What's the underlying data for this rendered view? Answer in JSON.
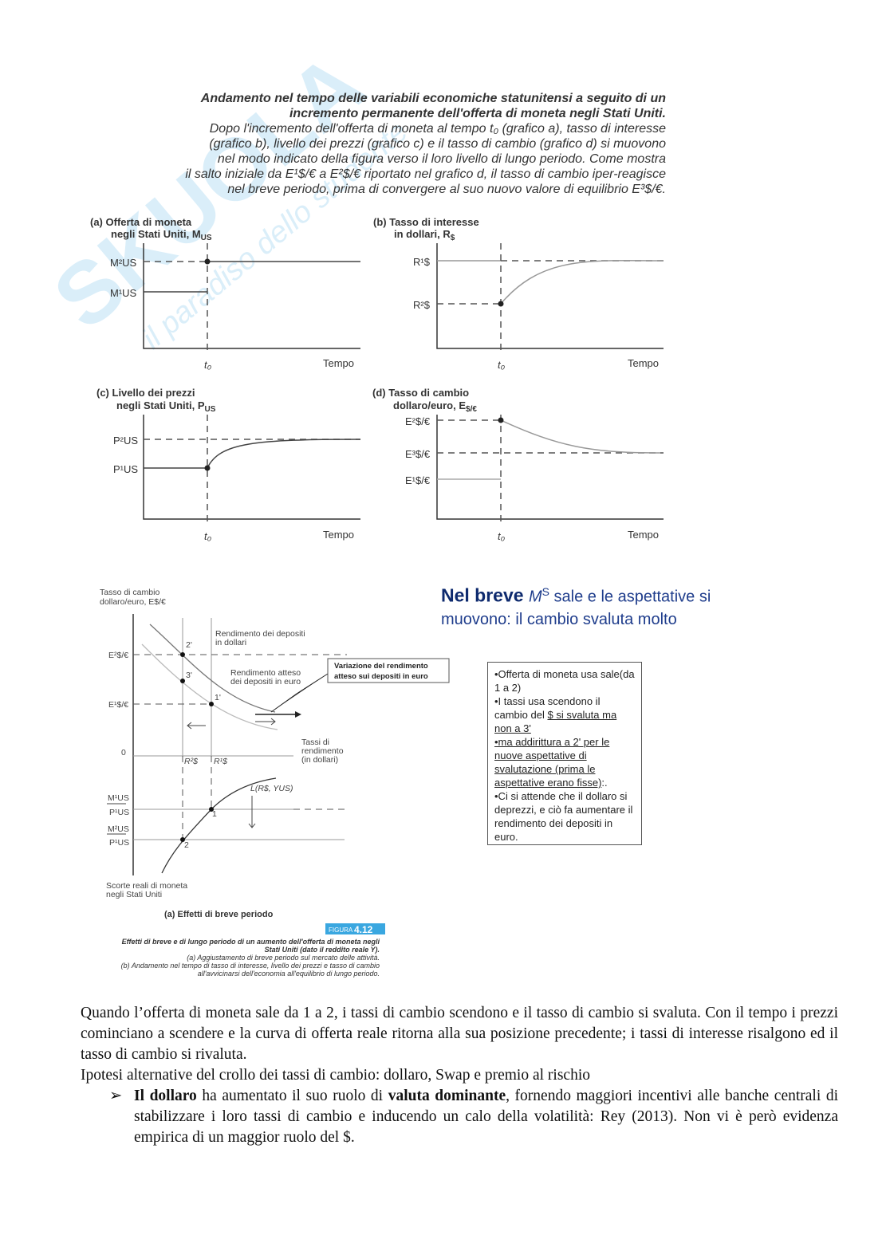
{
  "watermark": "SKUOLA.net — il paradiso dello studente",
  "figure_top": {
    "caption_bold": [
      "Andamento nel tempo delle variabili economiche statunitensi a seguito di un",
      "incremento permanente dell'offerta di moneta negli Stati Uniti."
    ],
    "caption_lines": [
      "Dopo l'incremento dell'offerta di moneta al tempo t₀ (grafico a), tasso di interesse",
      "(grafico b), livello dei prezzi (grafico c) e il tasso di cambio (grafico d) si muovono",
      "nel modo indicato della figura verso il loro livello di lungo periodo. Come mostra",
      "il salto iniziale da E¹$/€ a E²$/€ riportato nel grafico d, il tasso di cambio iper-reagisce",
      "nel breve periodo, prima di convergere al suo nuovo valore di equilibrio E³$/€."
    ],
    "panels": [
      {
        "title1": "(a) Offerta di moneta",
        "title2": "negli Stati Uniti, M",
        "title2_sub": "US",
        "y_labels": [
          "M²US",
          "M¹US"
        ],
        "t0": "t₀",
        "xlabel": "Tempo"
      },
      {
        "title1": "(b) Tasso di interesse",
        "title2": "in dollari, R",
        "title2_sub": "$",
        "y_labels": [
          "R¹$",
          "R²$"
        ],
        "t0": "t₀",
        "xlabel": "Tempo"
      },
      {
        "title1": "(c) Livello dei prezzi",
        "title2": "negli Stati Uniti, P",
        "title2_sub": "US",
        "y_labels": [
          "P²US",
          "P¹US"
        ],
        "t0": "t₀",
        "xlabel": "Tempo"
      },
      {
        "title1": "(d) Tasso di cambio",
        "title2": "dollaro/euro, E",
        "title2_sub": "$/€",
        "y_labels": [
          "E²$/€",
          "E³$/€",
          "E¹$/€"
        ],
        "t0": "t₀",
        "xlabel": "Tempo"
      }
    ]
  },
  "figure_bottom": {
    "yaxis_label": [
      "Tasso di cambio",
      "dollaro/euro, E$/€"
    ],
    "e2": "E²$/€",
    "e1": "E¹$/€",
    "zero": "0",
    "dollar_return": [
      "Rendimento dei depositi",
      "in dollari"
    ],
    "euro_return": [
      "Rendimento atteso",
      "dei depositi in euro"
    ],
    "box": [
      "Variazione del rendimento",
      "atteso  sui depositi in euro"
    ],
    "points": [
      "2'",
      "3'",
      "1'",
      "1",
      "2"
    ],
    "r2": "R²$",
    "r1": "R¹$",
    "xaxis_label": [
      "Tassi di",
      "rendimento",
      "(in dollari)"
    ],
    "l_curve": "L(R$, YUS)",
    "m1p1": [
      "M¹US",
      "P¹US"
    ],
    "m2p1": [
      "M²US",
      "P¹US"
    ],
    "money_label": [
      "Scorte reali di moneta",
      "negli Stati Uniti"
    ],
    "subtitle": "(a) Effetti di breve periodo",
    "badge_small": "FIGURA",
    "badge_num": "4.12",
    "caption_bold": [
      "Effetti di breve e di lungo periodo di un aumento dell'offerta di moneta negli",
      "Stati Uniti (dato il reddito reale Y)."
    ],
    "caption_lines": [
      "(a) Aggiustamento di breve periodo sul mercato delle attività.",
      "(b) Andamento nel tempo di tasso di interesse, livello dei prezzi e tasso di cambio",
      "all'avvicinarsi dell'economia all'equilibrio di lungo periodo."
    ]
  },
  "slide": {
    "title_bold": "Nel breve ",
    "title_m": "M",
    "title_sup": "S",
    "title_rest": "  sale e le aspettative si muovono: il cambio svaluta molto",
    "note": [
      "•Offerta di moneta usa sale(da 1 a 2)",
      "•I tassi usa scendono il cambio del ",
      "$ si svaluta ma non a 3'",
      "•ma addirittura a 2' per le nuove aspettative di svalutazione (prima le aspettative erano fisse)",
      ":.",
      "•Ci si attende che il dollaro si deprezzi, e ciò fa aumentare il rendimento dei depositi in euro."
    ]
  },
  "text": {
    "p1": "Quando l’offerta di moneta sale da 1 a 2, i tassi di cambio scendono e il tasso di cambio si svaluta. Con il tempo i prezzi cominciano a scendere e la curva di offerta reale ritorna alla sua posizione precedente; i tassi di interesse risalgono ed il tasso di cambio si rivaluta.",
    "p2": "Ipotesi alternative del crollo dei tassi di cambio: dollaro, Swap e premio al rischio",
    "bullet_marker": "➢",
    "b_bold1": "Il dollaro",
    "b_t1": " ha aumentato il suo ruolo di ",
    "b_bold2": "valuta dominante",
    "b_t2": ", fornendo maggiori incentivi alle banche centrali di stabilizzare i loro tassi di cambio e inducendo un calo della volatilità: Rey (2013). Non vi è però evidenza empirica di un maggior ruolo del $."
  },
  "colors": {
    "slide_title": "#1f3d8c",
    "badge": "#3aa7e0",
    "watermark": "#7fc4ea"
  }
}
